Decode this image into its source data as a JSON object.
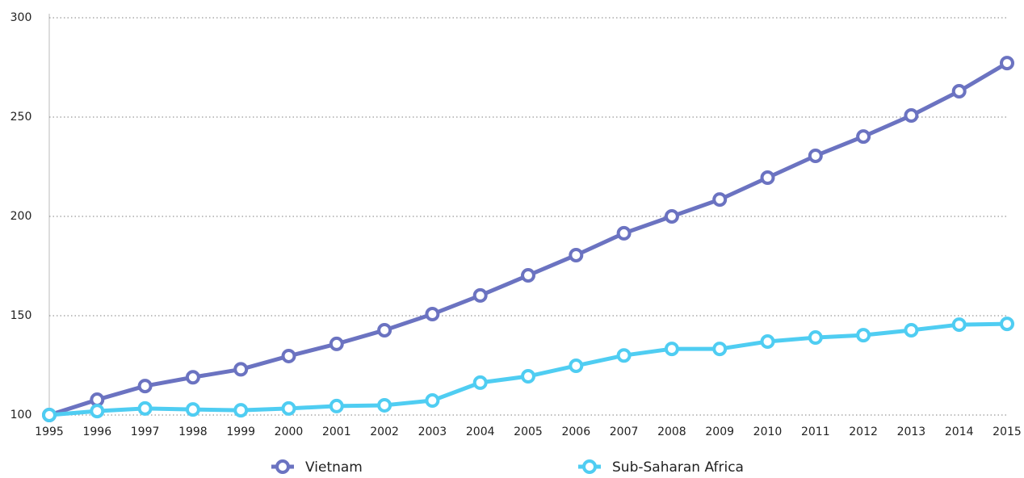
{
  "chart_data": {
    "type": "line",
    "categories": [
      "1995",
      "1996",
      "1997",
      "1998",
      "1999",
      "2000",
      "2001",
      "2002",
      "2003",
      "2004",
      "2005",
      "2006",
      "2007",
      "2008",
      "2009",
      "2010",
      "2011",
      "2012",
      "2013",
      "2014",
      "2015"
    ],
    "series": [
      {
        "name": "Vietnam",
        "color": "#6b73c1",
        "values": [
          100,
          107.7,
          114.6,
          119,
          123,
          129.7,
          135.8,
          142.7,
          150.8,
          160.2,
          170.3,
          180.5,
          191.5,
          200,
          208.5,
          219.5,
          230.5,
          240.2,
          250.8,
          263,
          277.2
        ]
      },
      {
        "name": "Sub-Saharan Africa",
        "color": "#4fcdf2",
        "values": [
          100,
          102,
          103.3,
          102.8,
          102.4,
          103.3,
          104.5,
          104.9,
          107.3,
          116.3,
          119.5,
          124.8,
          130,
          133.3,
          133.3,
          137,
          139,
          140.2,
          142.7,
          145.5,
          145.9
        ]
      }
    ],
    "ylim": [
      100,
      300
    ],
    "yticks": [
      100,
      150,
      200,
      250,
      300
    ],
    "grid": true,
    "legend": "bottom"
  }
}
